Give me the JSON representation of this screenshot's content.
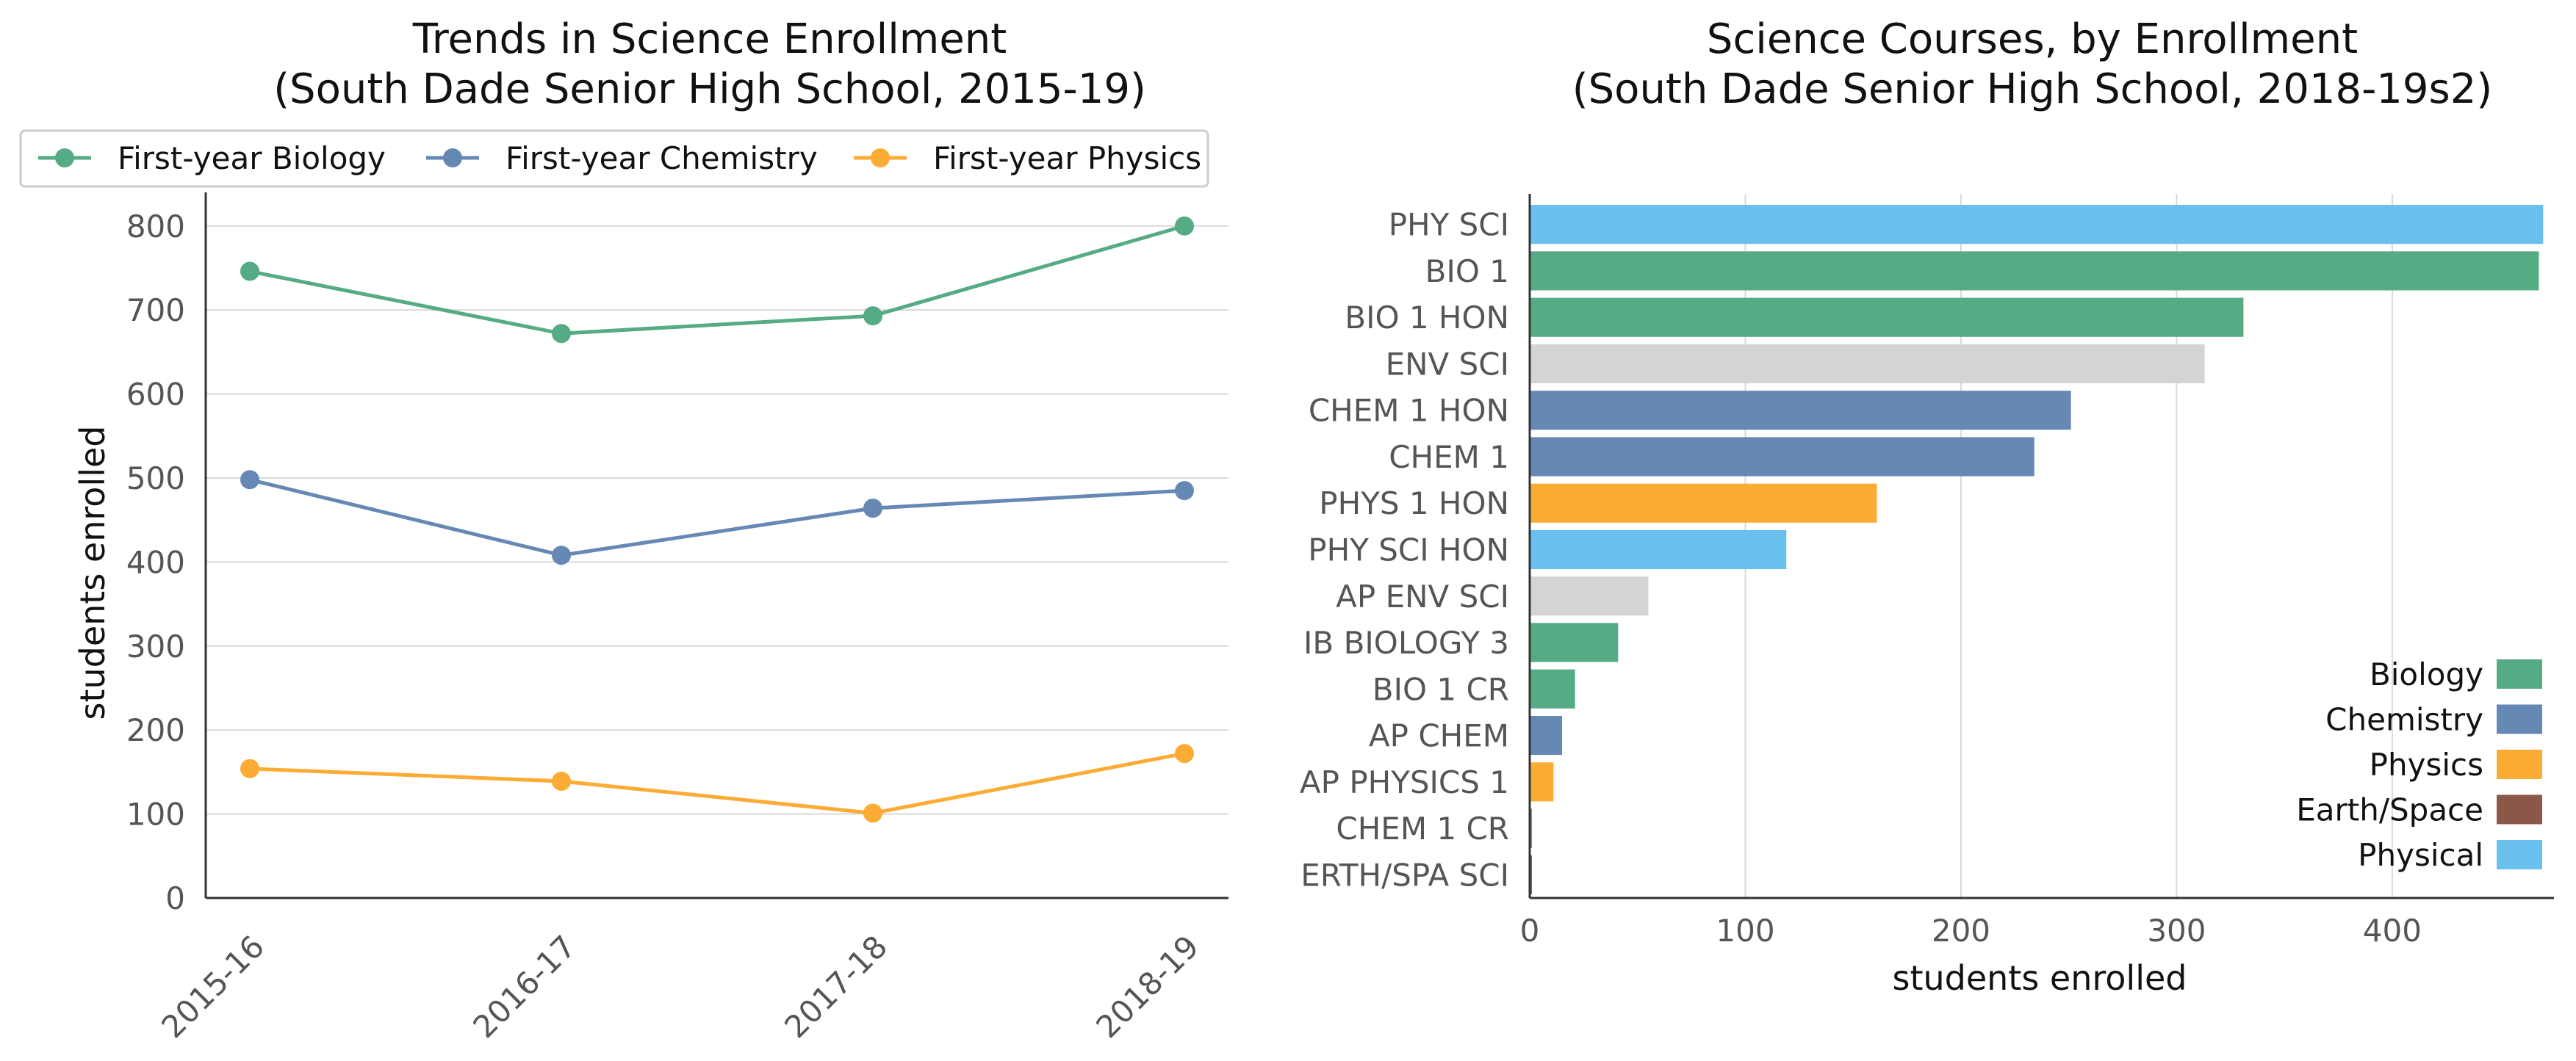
{
  "colors": {
    "biology": "#55ab83",
    "chemistry": "#6688b5",
    "physics": "#fcab35",
    "earth_space": "#8c5649",
    "physical": "#69c0ee",
    "environmental": "#d4d4d4",
    "grid": "#d9d9d9",
    "axis": "#333333",
    "tick_text": "#555555",
    "title_text": "#111111"
  },
  "chart_data": [
    {
      "id": "trends",
      "type": "line",
      "title_lines": [
        "Trends in Science Enrollment",
        "(South Dade Senior High School, 2015-19)"
      ],
      "xlabel": "",
      "ylabel": "students enrolled",
      "categories": [
        "2015-16",
        "2016-17",
        "2017-18",
        "2018-19"
      ],
      "ylim": [
        0,
        840
      ],
      "yticks": [
        0,
        100,
        200,
        300,
        400,
        500,
        600,
        700,
        800
      ],
      "grid": "horizontal",
      "legend_position": "top",
      "series": [
        {
          "name": "First-year Biology",
          "color_key": "biology",
          "values": [
            746,
            672,
            693,
            800
          ]
        },
        {
          "name": "First-year Chemistry",
          "color_key": "chemistry",
          "values": [
            498,
            408,
            464,
            485
          ]
        },
        {
          "name": "First-year Physics",
          "color_key": "physics",
          "values": [
            154,
            139,
            101,
            172
          ]
        }
      ]
    },
    {
      "id": "courses",
      "type": "bar",
      "orientation": "horizontal",
      "title_lines": [
        "Science Courses, by Enrollment",
        "(South Dade Senior High School, 2018-19s2)"
      ],
      "xlabel": "students enrolled",
      "ylabel": "",
      "xlim": [
        0,
        475
      ],
      "xticks": [
        0,
        100,
        200,
        300,
        400
      ],
      "grid": "vertical",
      "legend_position": "lower-right",
      "categories": [
        "PHY SCI",
        "BIO 1",
        "BIO 1 HON",
        "ENV SCI",
        "CHEM 1 HON",
        "CHEM 1",
        "PHYS 1 HON",
        "PHY SCI HON",
        "AP ENV SCI",
        "IB BIOLOGY 3",
        "BIO 1 CR",
        "AP CHEM",
        "AP PHYSICS 1",
        "CHEM 1 CR",
        "ERTH/SPA SCI"
      ],
      "values": [
        470,
        468,
        331,
        313,
        251,
        234,
        161,
        119,
        55,
        41,
        21,
        15,
        11,
        1,
        1
      ],
      "bar_color_keys": [
        "physical",
        "biology",
        "biology",
        "environmental",
        "chemistry",
        "chemistry",
        "physics",
        "physical",
        "environmental",
        "biology",
        "biology",
        "chemistry",
        "physics",
        "chemistry",
        "earth_space"
      ],
      "legend": [
        {
          "label": "Biology",
          "color_key": "biology"
        },
        {
          "label": "Chemistry",
          "color_key": "chemistry"
        },
        {
          "label": "Physics",
          "color_key": "physics"
        },
        {
          "label": "Earth/Space",
          "color_key": "earth_space"
        },
        {
          "label": "Physical",
          "color_key": "physical"
        }
      ]
    }
  ]
}
